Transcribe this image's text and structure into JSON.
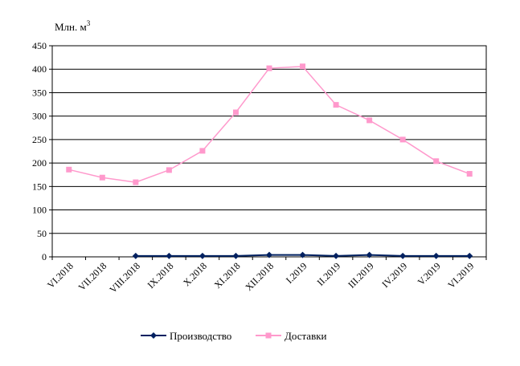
{
  "chart_data": {
    "type": "line",
    "ylabel": "Млн. м",
    "ylabel_sup": "3",
    "ylim": [
      0,
      450
    ],
    "ytick_step": 50,
    "grid": true,
    "legend_position": "bottom",
    "categories": [
      "VI.2018",
      "VII.2018",
      "VIII.2018",
      "IX.2018",
      "X.2018",
      "XI.2018",
      "XII.2018",
      "I.2019",
      "II.2019",
      "III.2019",
      "IV.2019",
      "V.2019",
      "VI.2019"
    ],
    "series": [
      {
        "name": "Производство",
        "color": "#002060",
        "marker": "diamond",
        "values": [
          null,
          null,
          2,
          2,
          2,
          2,
          4,
          4,
          2,
          4,
          2,
          2,
          2
        ]
      },
      {
        "name": "Доставки",
        "color": "#FF99CC",
        "marker": "square",
        "values": [
          186,
          169,
          159,
          185,
          226,
          308,
          402,
          406,
          324,
          291,
          250,
          204,
          177
        ]
      }
    ]
  }
}
